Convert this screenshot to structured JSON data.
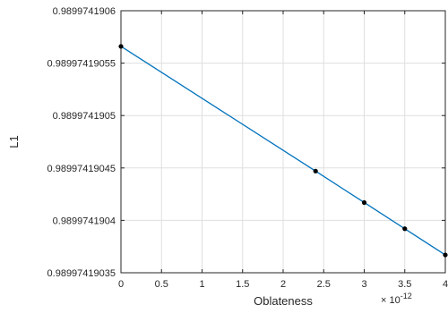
{
  "chart_data": {
    "type": "line",
    "xlabel": "Oblateness",
    "ylabel": "L1",
    "x_exponent_label": "× 10",
    "x_exponent_power": "-12",
    "xlim": [
      0,
      4
    ],
    "ylim": [
      0.98997419035,
      0.9899741906
    ],
    "grid": true,
    "x_ticks": [
      0,
      0.5,
      1,
      1.5,
      2,
      2.5,
      3,
      3.5,
      4
    ],
    "x_tick_labels": [
      "0",
      "0.5",
      "1",
      "1.5",
      "2",
      "2.5",
      "3",
      "3.5",
      "4"
    ],
    "y_ticks": [
      0.98997419035,
      0.9899741904,
      0.98997419045,
      0.9899741905,
      0.98997419055,
      0.9899741906
    ],
    "y_tick_labels": [
      "0.98997419035",
      "0.9899741904",
      "0.98997419045",
      "0.9899741905",
      "0.98997419055",
      "0.9899741906"
    ],
    "series": [
      {
        "color": "#0072bd",
        "marker_color": "#000000",
        "x": [
          0,
          2.4,
          3,
          3.5,
          4
        ],
        "y": [
          0.989974190566,
          0.989974190447,
          0.989974190417,
          0.989974190392,
          0.989974190367
        ]
      }
    ]
  }
}
